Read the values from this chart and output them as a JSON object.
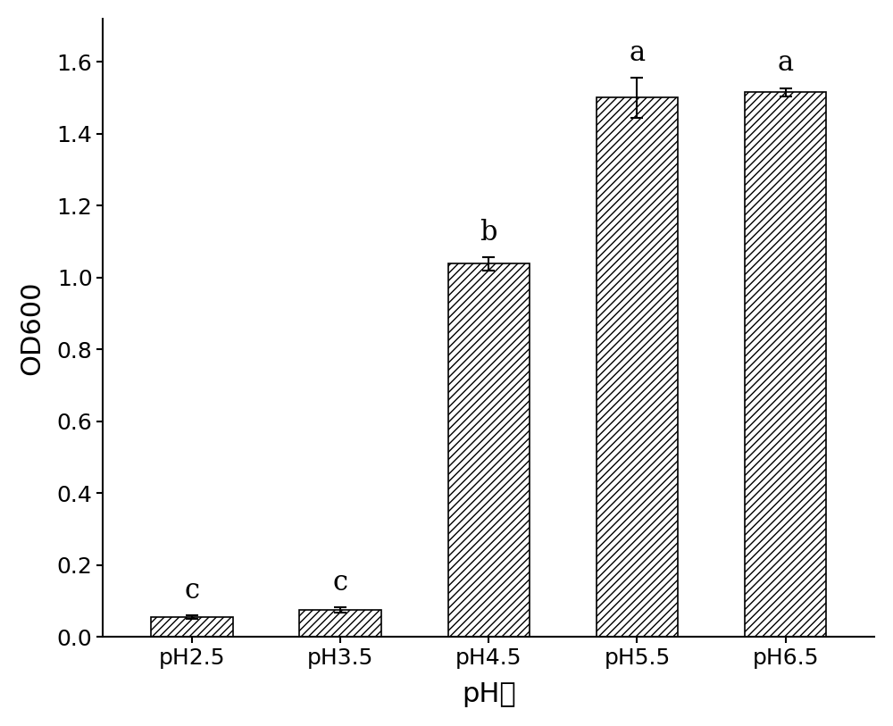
{
  "categories": [
    "pH2.5",
    "pH3.5",
    "pH4.5",
    "pH5.5",
    "pH6.5"
  ],
  "values": [
    0.055,
    0.075,
    1.038,
    1.5,
    1.515
  ],
  "errors": [
    0.005,
    0.008,
    0.018,
    0.055,
    0.012
  ],
  "labels": [
    "c",
    "c",
    "b",
    "a",
    "a"
  ],
  "xlabel": "pH値",
  "ylabel": "OD600",
  "ylim": [
    0,
    1.72
  ],
  "yticks": [
    0.0,
    0.2,
    0.4,
    0.6,
    0.8,
    1.0,
    1.2,
    1.4,
    1.6
  ],
  "bar_color": "#ffffff",
  "bar_edgecolor": "#000000",
  "hatch": "////",
  "label_fontsize": 22,
  "tick_fontsize": 18,
  "stat_label_fontsize": 22,
  "bar_width": 0.55,
  "figsize": [
    10.0,
    8.13
  ],
  "dpi": 100
}
